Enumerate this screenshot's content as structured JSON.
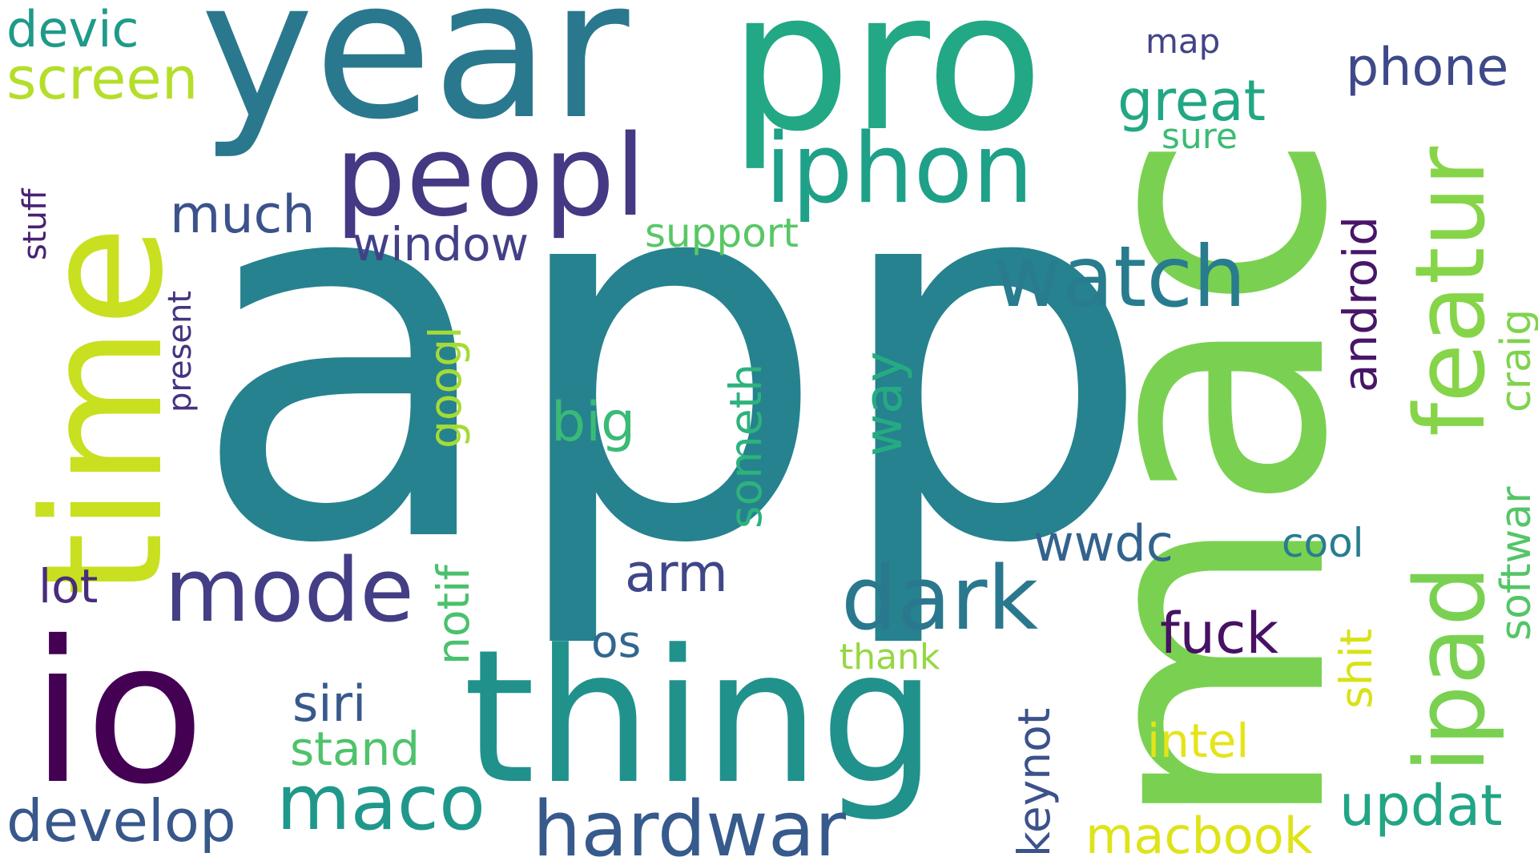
{
  "words": [
    {
      "text": "app",
      "color": "#26828e"
    },
    {
      "text": "mac",
      "color": "#7ad151"
    },
    {
      "text": "year",
      "color": "#2a788e"
    },
    {
      "text": "pro",
      "color": "#22a884"
    },
    {
      "text": "time",
      "color": "#c8e020"
    },
    {
      "text": "io",
      "color": "#440154"
    },
    {
      "text": "thing",
      "color": "#21918c"
    },
    {
      "text": "peopl",
      "color": "#443983"
    },
    {
      "text": "iphon",
      "color": "#1fa088"
    },
    {
      "text": "ipad",
      "color": "#7ad151"
    },
    {
      "text": "featur",
      "color": "#86d549"
    },
    {
      "text": "watch",
      "color": "#287c8e"
    },
    {
      "text": "dark",
      "color": "#2a788e"
    },
    {
      "text": "mode",
      "color": "#433e85"
    },
    {
      "text": "hardwar",
      "color": "#375a8c"
    },
    {
      "text": "maco",
      "color": "#1f988b"
    },
    {
      "text": "develop",
      "color": "#38588c"
    },
    {
      "text": "screen",
      "color": "#b5de2b"
    },
    {
      "text": "devic",
      "color": "#1f9a8a"
    },
    {
      "text": "much",
      "color": "#3b528b"
    },
    {
      "text": "window",
      "color": "#424086"
    },
    {
      "text": "phone",
      "color": "#3e4989"
    },
    {
      "text": "great",
      "color": "#22a785"
    },
    {
      "text": "sure",
      "color": "#3bbb75"
    },
    {
      "text": "map",
      "color": "#414487"
    },
    {
      "text": "support",
      "color": "#58c765"
    },
    {
      "text": "android",
      "color": "#481668"
    },
    {
      "text": "craig",
      "color": "#7fd34e"
    },
    {
      "text": "softwar",
      "color": "#54c568"
    },
    {
      "text": "cool",
      "color": "#287d8e"
    },
    {
      "text": "shit",
      "color": "#d8e219"
    },
    {
      "text": "fuck",
      "color": "#471164"
    },
    {
      "text": "wwdc",
      "color": "#33638d"
    },
    {
      "text": "arm",
      "color": "#3f4788"
    },
    {
      "text": "someth",
      "color": "#2db27d"
    },
    {
      "text": "way",
      "color": "#25ab82"
    },
    {
      "text": "big",
      "color": "#3aba76"
    },
    {
      "text": "googl",
      "color": "#a5db36"
    },
    {
      "text": "notif",
      "color": "#4ac16d"
    },
    {
      "text": "os",
      "color": "#31678e"
    },
    {
      "text": "thank",
      "color": "#95d840"
    },
    {
      "text": "siri",
      "color": "#38598c"
    },
    {
      "text": "stand",
      "color": "#4ec36b"
    },
    {
      "text": "lot",
      "color": "#472d7b"
    },
    {
      "text": "stuff",
      "color": "#482173"
    },
    {
      "text": "present",
      "color": "#46337f"
    },
    {
      "text": "keynot",
      "color": "#3b528b"
    },
    {
      "text": "intel",
      "color": "#e5e419"
    },
    {
      "text": "macbook",
      "color": "#dfe318"
    },
    {
      "text": "updat",
      "color": "#21a585"
    }
  ]
}
